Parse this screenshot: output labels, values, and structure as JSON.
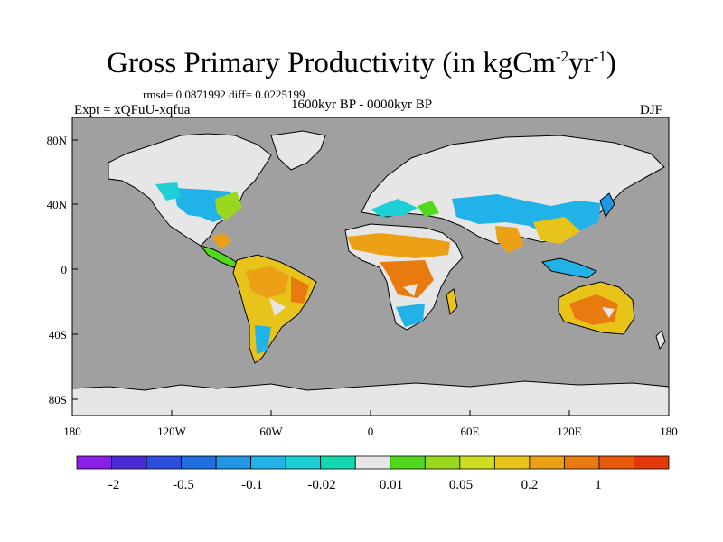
{
  "title_main": "Gross Primary Productivity (in kgCm",
  "title_sup1": "-2",
  "title_mid": "yr",
  "title_sup2": "-1",
  "title_end": ")",
  "stats": "rmsd= 0.0871992 diff= 0.0225199",
  "left_label": "Expt = xQFuU-xqfua",
  "center_label": "1600kyr BP - 0000kyr BP",
  "right_label": "DJF",
  "lat_ticks": [
    "80N",
    "40N",
    "0",
    "40S",
    "80S"
  ],
  "lon_ticks": [
    "180",
    "120W",
    "60W",
    "0",
    "60E",
    "120E",
    "180"
  ],
  "colorbar": {
    "colors": [
      "#8a1fe8",
      "#4a2bd6",
      "#2b4fdc",
      "#1f6fe0",
      "#2296e6",
      "#20b2e8",
      "#1ecfd6",
      "#14d8b0",
      "#e6e6e6",
      "#52d81c",
      "#9ad820",
      "#cede1e",
      "#e8c41a",
      "#eba016",
      "#e87a10",
      "#e65a0a",
      "#e2380a"
    ],
    "labels": [
      "-2",
      "-0.5",
      "-0.1",
      "-0.02",
      "0.01",
      "0.05",
      "0.2",
      "1"
    ]
  },
  "colors": {
    "ocean": "#a0a0a0",
    "zero_land": "#e6e6e6",
    "ice": "#e6e6e6"
  }
}
